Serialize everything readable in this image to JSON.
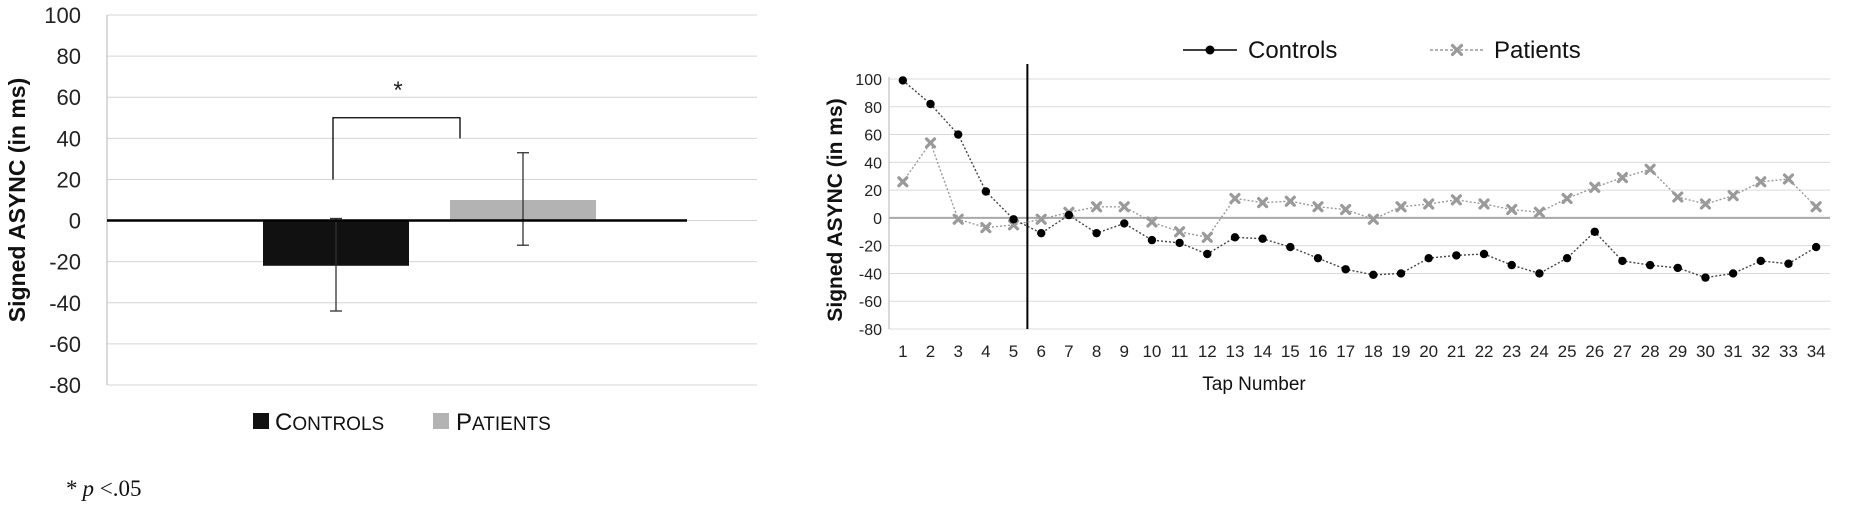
{
  "chart_data": [
    {
      "type": "bar",
      "ylabel": "Signed ASYNC (in ms)",
      "ylim": [
        -80,
        100
      ],
      "yticks": [
        100,
        80,
        60,
        40,
        20,
        0,
        -20,
        -40,
        -60,
        -80
      ],
      "grid": true,
      "legend_position": "bottom",
      "series": [
        {
          "name": "Controls",
          "value": -22,
          "error_low": -44,
          "error_high": 1,
          "color": "#111111"
        },
        {
          "name": "Patients",
          "value": 10,
          "error_low": -12,
          "error_high": 33,
          "color": "#b3b3b3"
        }
      ],
      "legend_labels": {
        "controls_initial": "C",
        "controls_rest": "ONTROLS",
        "patients_initial": "P",
        "patients_rest": "ATIENTS"
      },
      "significance": {
        "marker": "*",
        "bracket_y": 50
      },
      "footnote": {
        "star": "*",
        "p": "p",
        "rest": " <.05"
      }
    },
    {
      "type": "line",
      "xlabel": "Tap Number",
      "ylabel": "Signed ASYNC (in ms)",
      "ylim": [
        -80,
        100
      ],
      "yticks": [
        100,
        80,
        60,
        40,
        20,
        0,
        -20,
        -40,
        -60,
        -80
      ],
      "x": [
        1,
        2,
        3,
        4,
        5,
        6,
        7,
        8,
        9,
        10,
        11,
        12,
        13,
        14,
        15,
        16,
        17,
        18,
        19,
        20,
        21,
        22,
        23,
        24,
        25,
        26,
        27,
        28,
        29,
        30,
        31,
        32,
        33,
        34
      ],
      "grid": true,
      "legend_position": "top",
      "vertical_marker_x": 6,
      "series": [
        {
          "name": "Controls",
          "color": "#000000",
          "values": [
            99,
            82,
            60,
            19,
            -1,
            -11,
            2,
            -11,
            -4,
            -16,
            -18,
            -26,
            -14,
            -15,
            -21,
            -29,
            -37,
            -41,
            -40,
            -29,
            -27,
            -26,
            -34,
            -40,
            -29,
            -10,
            -31,
            -34,
            -36,
            -43,
            -40,
            -31,
            -33,
            -21
          ]
        },
        {
          "name": "Patients",
          "color": "#9a9a9a",
          "values": [
            26,
            54,
            -1,
            -7,
            -5,
            -1,
            4,
            8,
            8,
            -3,
            -10,
            -14,
            14,
            11,
            12,
            8,
            6,
            -1,
            8,
            10,
            13,
            10,
            6,
            4,
            14,
            22,
            29,
            35,
            15,
            10,
            16,
            26,
            28,
            8
          ]
        }
      ]
    }
  ]
}
